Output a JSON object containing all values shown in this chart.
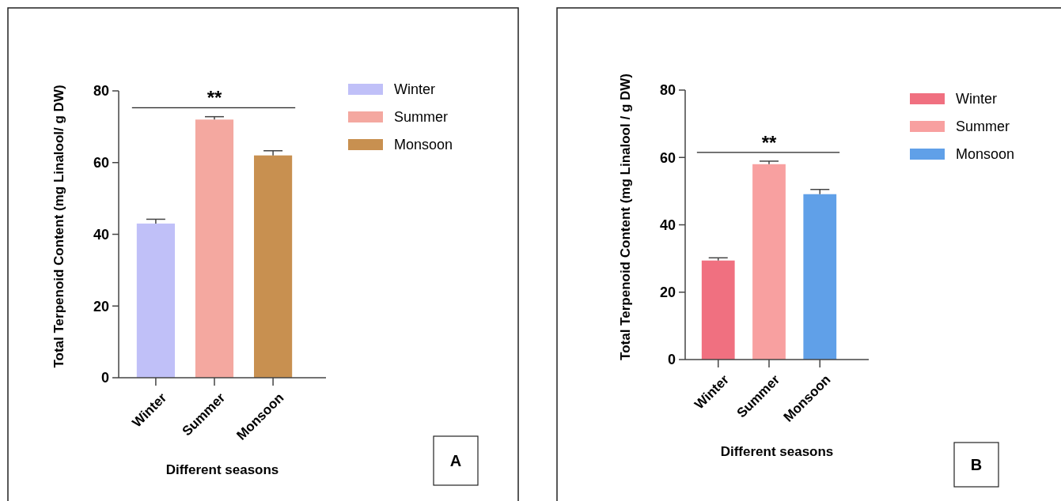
{
  "chart_data": [
    {
      "type": "bar",
      "xlabel": "Different seasons",
      "ylabel": "Total Terpenoid Content (mg Linalool/ g DW)",
      "categories": [
        "Winter",
        "Summer",
        "Monsoon"
      ],
      "series": [
        {
          "name": "Winter",
          "color": "#c0c0f8",
          "values": [
            43,
            null,
            null
          ],
          "errors": [
            [
              43,
              44.2
            ],
            null,
            null
          ]
        },
        {
          "name": "Summer",
          "color": "#f4a8a0",
          "values": [
            null,
            72,
            null
          ],
          "errors": [
            null,
            [
              72,
              72.8
            ],
            null
          ]
        },
        {
          "name": "Monsoon",
          "color": "#c89050",
          "values": [
            null,
            null,
            62
          ],
          "errors": [
            null,
            null,
            [
              62,
              63.3
            ]
          ]
        }
      ],
      "ylim": [
        0,
        80
      ],
      "yticks": [
        0,
        20,
        40,
        60,
        80
      ],
      "legend": "right",
      "ref_lines": [
        {
          "axis": "y",
          "value": 75.3,
          "label": "**",
          "color": "#222222"
        }
      ],
      "annotations": [
        "A"
      ]
    },
    {
      "type": "bar",
      "xlabel": "Different seasons",
      "ylabel": "Total Terpenoid Content (mg Linalool / g DW)",
      "categories": [
        "Winter",
        "Summer",
        "Monsoon"
      ],
      "series": [
        {
          "name": "Winter",
          "color": "#f07080",
          "values": [
            29.4,
            null,
            null
          ],
          "errors": [
            [
              29.4,
              30.2
            ],
            null,
            null
          ]
        },
        {
          "name": "Summer",
          "color": "#f8a0a0",
          "values": [
            null,
            58,
            null
          ],
          "errors": [
            null,
            [
              58,
              58.9
            ],
            null
          ]
        },
        {
          "name": "Monsoon",
          "color": "#60a0e8",
          "values": [
            null,
            null,
            49.1
          ],
          "errors": [
            null,
            null,
            [
              49.1,
              50.5
            ]
          ]
        }
      ],
      "ylim": [
        0,
        80
      ],
      "yticks": [
        0,
        20,
        40,
        60,
        80
      ],
      "legend": "right",
      "ref_lines": [
        {
          "axis": "y",
          "value": 61.5,
          "label": "**",
          "color": "#222222"
        }
      ],
      "annotations": [
        "B"
      ]
    }
  ]
}
